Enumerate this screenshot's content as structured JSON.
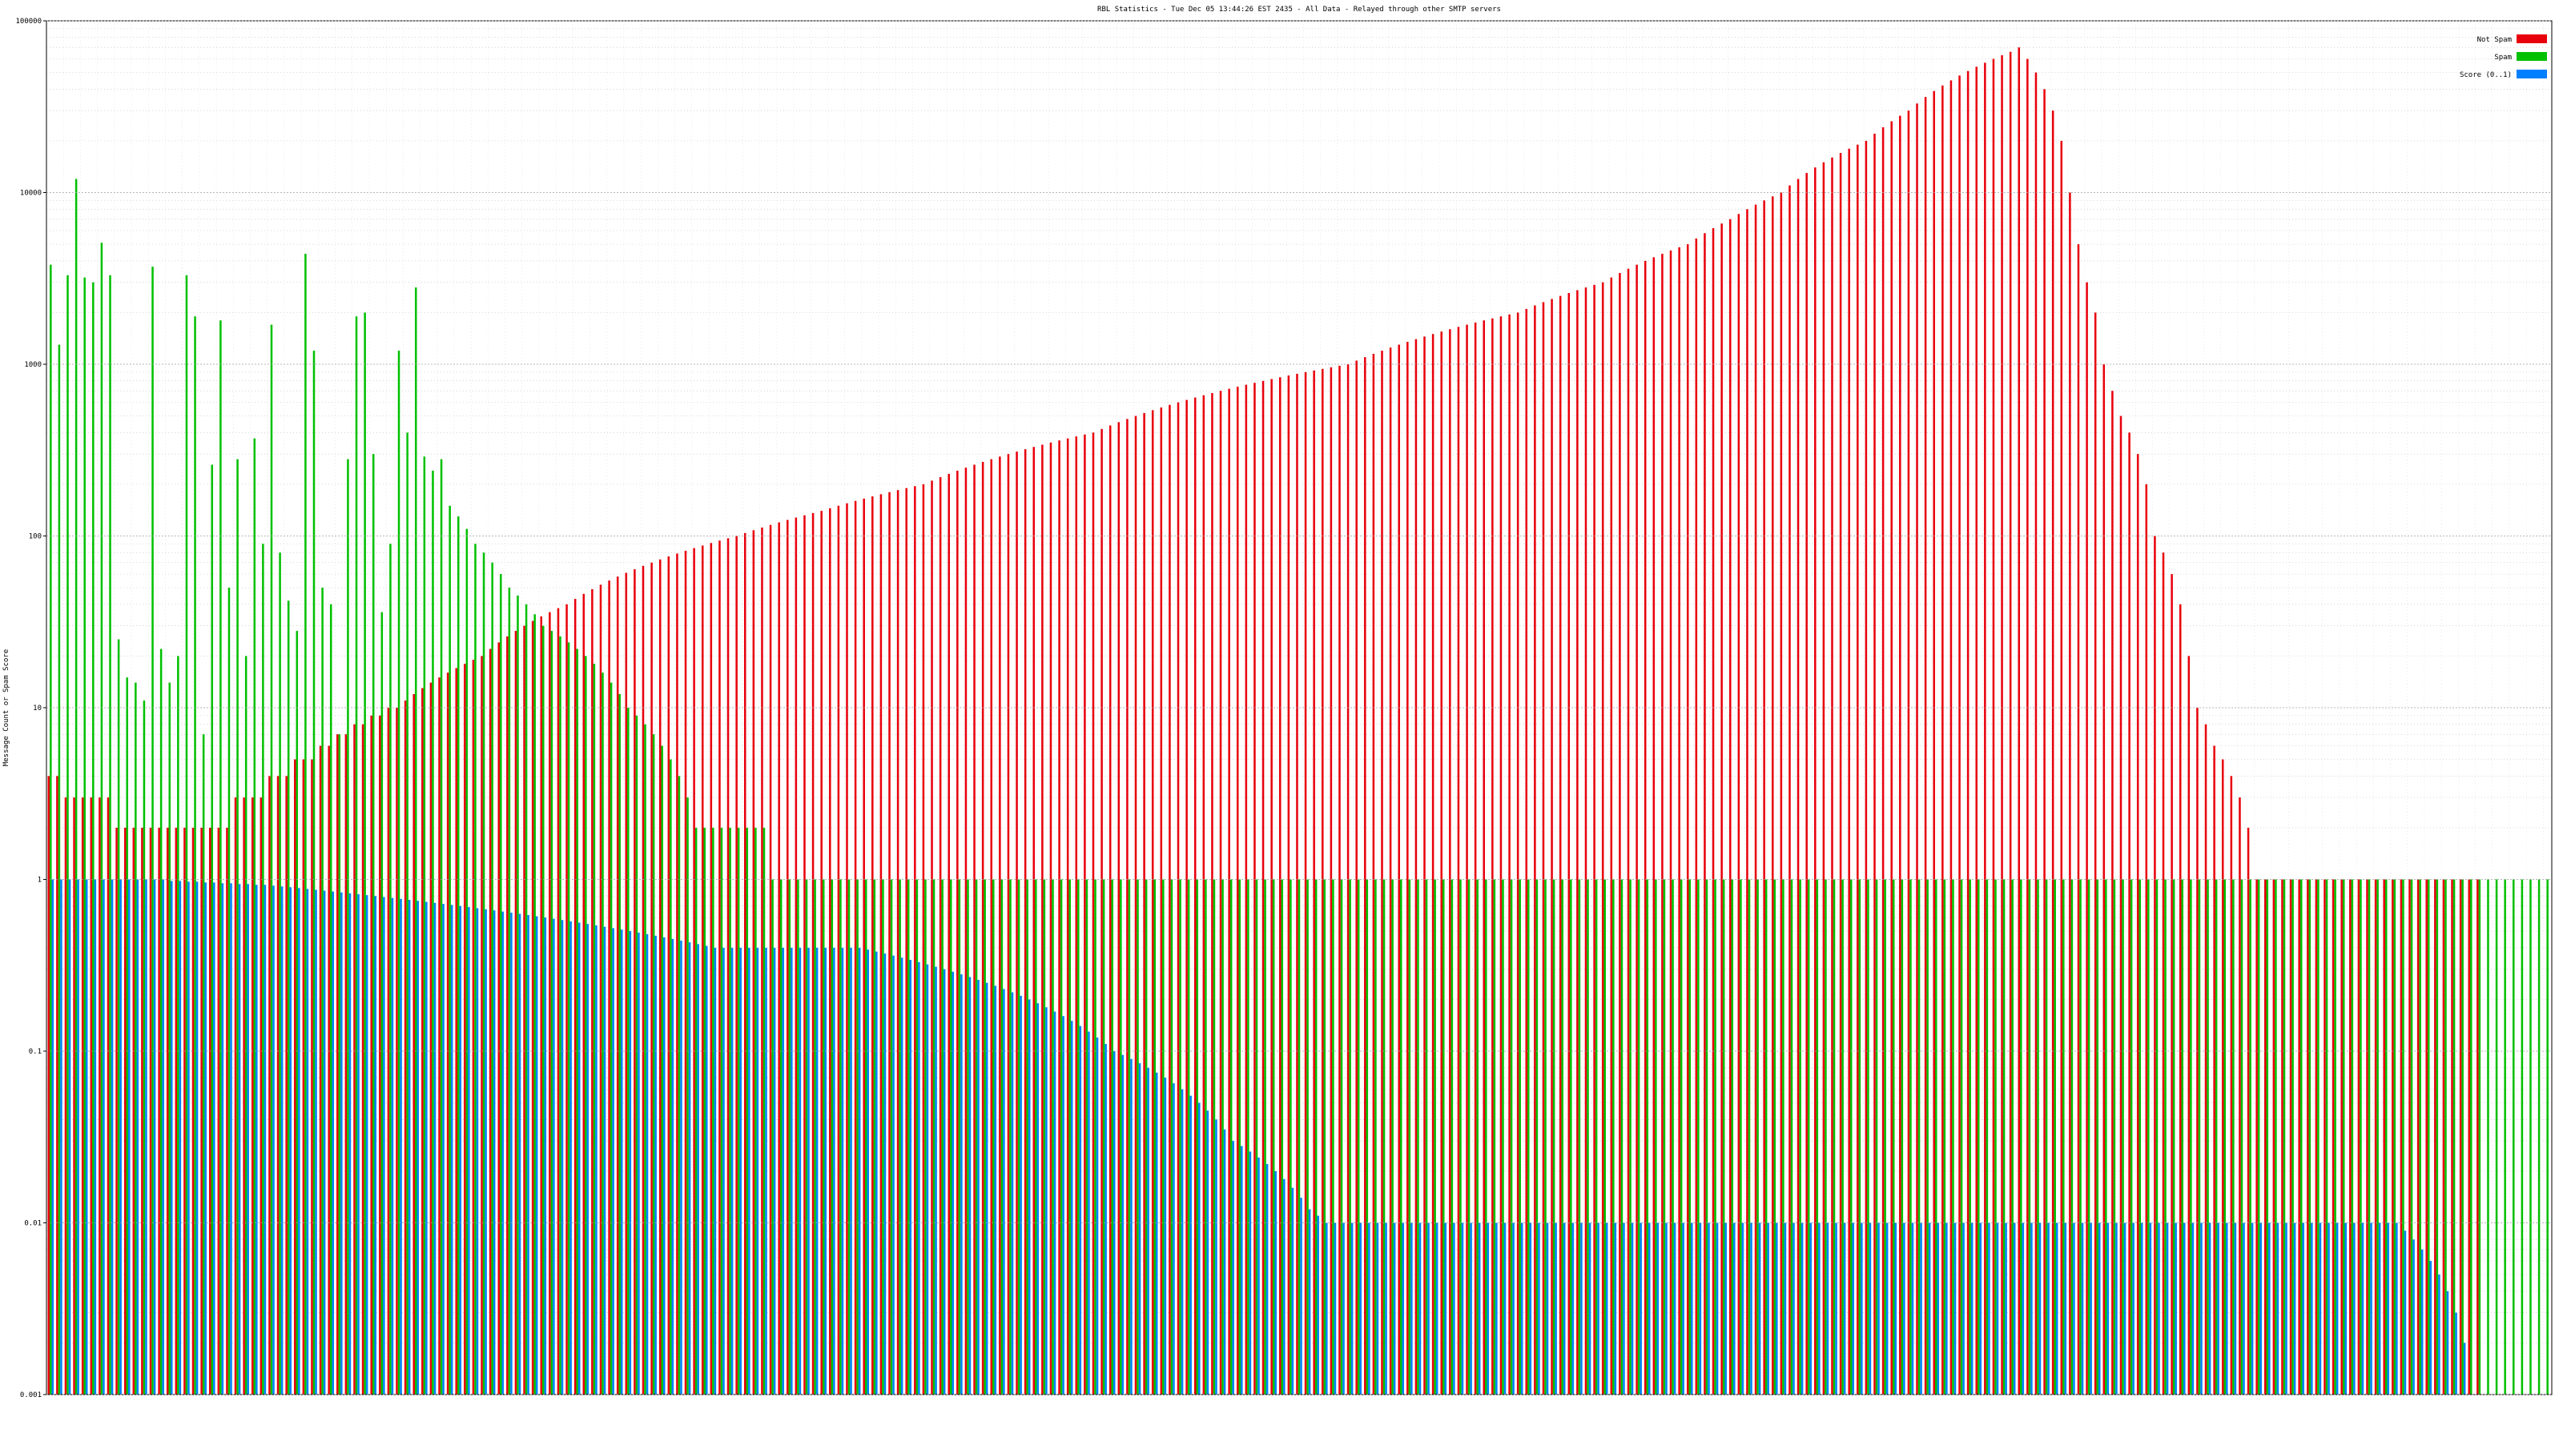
{
  "chart_data": {
    "type": "bar",
    "title": "RBL Statistics - Tue Dec 05 13:44:26 EST 2435 - All Data - Relayed through other SMTP servers",
    "xlabel": "",
    "ylabel": "Message Count or Spam Score",
    "log_scale": true,
    "ylim": [
      0.001,
      100000
    ],
    "y_ticks": [
      0.001,
      0.01,
      0.1,
      1,
      10,
      100,
      1000,
      10000,
      100000
    ],
    "y_tick_labels": [
      "0.001",
      "0.01",
      "0.1",
      "1",
      "10",
      "100",
      "1000",
      "10000",
      "100000"
    ],
    "grid": true,
    "legend_position": "top-right",
    "categories_note": "x-axis category labels are present but illegible at this resolution",
    "series": [
      {
        "name": "Not Spam",
        "color": "#e8000b",
        "values": [
          4,
          4,
          3,
          3,
          3,
          3,
          3,
          3,
          2,
          2,
          2,
          2,
          2,
          2,
          2,
          2,
          2,
          2,
          2,
          2,
          2,
          2,
          3,
          3,
          3,
          3,
          4,
          4,
          4,
          5,
          5,
          5,
          6,
          6,
          7,
          7,
          8,
          8,
          9,
          9,
          10,
          10,
          11,
          12,
          13,
          14,
          15,
          16,
          17,
          18,
          19,
          20,
          22,
          24,
          26,
          28,
          30,
          32,
          34,
          36,
          38,
          40,
          43,
          46,
          49,
          52,
          55,
          58,
          61,
          64,
          67,
          70,
          73,
          76,
          79,
          82,
          85,
          88,
          91,
          94,
          97,
          100,
          104,
          108,
          112,
          116,
          120,
          124,
          128,
          132,
          136,
          140,
          145,
          150,
          155,
          160,
          165,
          170,
          175,
          180,
          185,
          190,
          195,
          200,
          210,
          220,
          230,
          240,
          250,
          260,
          270,
          280,
          290,
          300,
          310,
          320,
          330,
          340,
          350,
          360,
          370,
          380,
          390,
          400,
          420,
          440,
          460,
          480,
          500,
          520,
          540,
          560,
          580,
          600,
          620,
          640,
          660,
          680,
          700,
          720,
          740,
          760,
          780,
          800,
          820,
          840,
          860,
          880,
          900,
          920,
          940,
          960,
          980,
          1000,
          1050,
          1100,
          1150,
          1200,
          1250,
          1300,
          1350,
          1400,
          1450,
          1500,
          1550,
          1600,
          1650,
          1700,
          1750,
          1800,
          1850,
          1900,
          1950,
          2000,
          2100,
          2200,
          2300,
          2400,
          2500,
          2600,
          2700,
          2800,
          2900,
          3000,
          3200,
          3400,
          3600,
          3800,
          4000,
          4200,
          4400,
          4600,
          4800,
          5000,
          5400,
          5800,
          6200,
          6600,
          7000,
          7500,
          8000,
          8500,
          9000,
          9500,
          10000,
          11000,
          12000,
          13000,
          14000,
          15000,
          16000,
          17000,
          18000,
          19000,
          20000,
          22000,
          24000,
          26000,
          28000,
          30000,
          33000,
          36000,
          39000,
          42000,
          45000,
          48000,
          51000,
          54000,
          57000,
          60000,
          63000,
          66000,
          70000,
          60000,
          50000,
          40000,
          30000,
          20000,
          10000,
          5000,
          3000,
          2000,
          1000,
          700,
          500,
          400,
          300,
          200,
          100,
          80,
          60,
          40,
          20,
          10,
          8,
          6,
          5,
          4,
          3,
          2,
          1,
          1,
          1,
          1,
          1,
          1,
          1,
          1,
          1,
          1,
          1,
          1,
          1,
          1,
          1,
          1,
          1,
          1,
          1,
          1,
          1,
          1,
          1,
          1,
          1,
          1,
          1
        ]
      },
      {
        "name": "Spam",
        "color": "#00c000",
        "values": [
          3800,
          1300,
          3300,
          12000,
          3200,
          3000,
          5100,
          3300,
          25,
          15,
          14,
          11,
          3700,
          22,
          14,
          20,
          3300,
          1900,
          7,
          260,
          1800,
          50,
          280,
          20,
          370,
          90,
          1700,
          80,
          42,
          28,
          4400,
          1200,
          50,
          40,
          7,
          280,
          1900,
          2000,
          300,
          36,
          90,
          1200,
          400,
          2800,
          290,
          240,
          280,
          150,
          130,
          110,
          90,
          80,
          70,
          60,
          50,
          45,
          40,
          35,
          30,
          28,
          26,
          24,
          22,
          20,
          18,
          16,
          14,
          12,
          10,
          9,
          8,
          7,
          6,
          5,
          4,
          3,
          2,
          2,
          2,
          2,
          2,
          2,
          2,
          2,
          2,
          1,
          1,
          1,
          1,
          1,
          1,
          1,
          1,
          1,
          1,
          1,
          1,
          1,
          1,
          1,
          1,
          1,
          1,
          1,
          1,
          1,
          1,
          1,
          1,
          1,
          1,
          1,
          1,
          1,
          1,
          1,
          1,
          1,
          1,
          1,
          1,
          1,
          1,
          1,
          1,
          1,
          1,
          1,
          1,
          1,
          1,
          1,
          1,
          1,
          1,
          1,
          1,
          1,
          1,
          1,
          1,
          1,
          1,
          1,
          1,
          1,
          1,
          1,
          1,
          1,
          1,
          1,
          1,
          1,
          1,
          1,
          1,
          1,
          1,
          1,
          1,
          1,
          1,
          1,
          1,
          1,
          1,
          1,
          1,
          1,
          1,
          1,
          1,
          1,
          1,
          1,
          1,
          1,
          1,
          1,
          1,
          1,
          1,
          1,
          1,
          1,
          1,
          1,
          1,
          1,
          1,
          1,
          1,
          1,
          1,
          1,
          1,
          1,
          1,
          1,
          1,
          1,
          1,
          1,
          1,
          1,
          1,
          1,
          1,
          1,
          1,
          1,
          1,
          1,
          1,
          1,
          1,
          1,
          1,
          1,
          1,
          1,
          1,
          1,
          1,
          1,
          1,
          1,
          1,
          1,
          1,
          1,
          1,
          1,
          1,
          1,
          1,
          1,
          1,
          1,
          1,
          1,
          1,
          1,
          1,
          1,
          1,
          1,
          1,
          1,
          1,
          1,
          1,
          1,
          1,
          1,
          1,
          1,
          1,
          1,
          1,
          1,
          1,
          1,
          1,
          1,
          1,
          1,
          1,
          1,
          1,
          1,
          1,
          1,
          1,
          1,
          1,
          1,
          1,
          1,
          1,
          1,
          1,
          1,
          1,
          1,
          1,
          1,
          1,
          1,
          1,
          1,
          1,
          1,
          1
        ]
      },
      {
        "name": "Score (0..1)",
        "color": "#0080ff",
        "values": [
          1,
          1,
          1,
          1,
          1,
          1,
          1,
          1,
          1,
          1,
          1,
          1,
          1,
          1,
          0.98,
          0.98,
          0.97,
          0.97,
          0.96,
          0.96,
          0.95,
          0.95,
          0.94,
          0.94,
          0.93,
          0.93,
          0.92,
          0.91,
          0.9,
          0.89,
          0.88,
          0.87,
          0.86,
          0.85,
          0.84,
          0.83,
          0.82,
          0.81,
          0.8,
          0.79,
          0.78,
          0.77,
          0.76,
          0.75,
          0.74,
          0.73,
          0.72,
          0.71,
          0.7,
          0.69,
          0.68,
          0.67,
          0.66,
          0.65,
          0.64,
          0.63,
          0.62,
          0.61,
          0.6,
          0.59,
          0.58,
          0.57,
          0.56,
          0.55,
          0.54,
          0.53,
          0.52,
          0.51,
          0.5,
          0.49,
          0.48,
          0.47,
          0.46,
          0.45,
          0.44,
          0.43,
          0.42,
          0.41,
          0.4,
          0.4,
          0.4,
          0.4,
          0.4,
          0.4,
          0.4,
          0.4,
          0.4,
          0.4,
          0.4,
          0.4,
          0.4,
          0.4,
          0.4,
          0.4,
          0.4,
          0.4,
          0.39,
          0.38,
          0.37,
          0.36,
          0.35,
          0.34,
          0.33,
          0.32,
          0.31,
          0.3,
          0.29,
          0.28,
          0.27,
          0.26,
          0.25,
          0.24,
          0.23,
          0.22,
          0.21,
          0.2,
          0.19,
          0.18,
          0.17,
          0.16,
          0.15,
          0.14,
          0.13,
          0.12,
          0.11,
          0.1,
          0.095,
          0.09,
          0.085,
          0.08,
          0.075,
          0.07,
          0.065,
          0.06,
          0.055,
          0.05,
          0.045,
          0.04,
          0.035,
          0.03,
          0.028,
          0.026,
          0.024,
          0.022,
          0.02,
          0.018,
          0.016,
          0.014,
          0.012,
          0.011,
          0.01,
          0.01,
          0.01,
          0.01,
          0.01,
          0.01,
          0.01,
          0.01,
          0.01,
          0.01,
          0.01,
          0.01,
          0.01,
          0.01,
          0.01,
          0.01,
          0.01,
          0.01,
          0.01,
          0.01,
          0.01,
          0.01,
          0.01,
          0.01,
          0.01,
          0.01,
          0.01,
          0.01,
          0.01,
          0.01,
          0.01,
          0.01,
          0.01,
          0.01,
          0.01,
          0.01,
          0.01,
          0.01,
          0.01,
          0.01,
          0.01,
          0.01,
          0.01,
          0.01,
          0.01,
          0.01,
          0.01,
          0.01,
          0.01,
          0.01,
          0.01,
          0.01,
          0.01,
          0.01,
          0.01,
          0.01,
          0.01,
          0.01,
          0.01,
          0.01,
          0.01,
          0.01,
          0.01,
          0.01,
          0.01,
          0.01,
          0.01,
          0.01,
          0.01,
          0.01,
          0.01,
          0.01,
          0.01,
          0.01,
          0.01,
          0.01,
          0.01,
          0.01,
          0.01,
          0.01,
          0.01,
          0.01,
          0.01,
          0.01,
          0.01,
          0.01,
          0.01,
          0.01,
          0.01,
          0.01,
          0.01,
          0.01,
          0.01,
          0.01,
          0.01,
          0.01,
          0.01,
          0.01,
          0.01,
          0.01,
          0.01,
          0.01,
          0.01,
          0.01,
          0.01,
          0.01,
          0.01,
          0.01,
          0.01,
          0.01,
          0.01,
          0.01,
          0.01,
          0.01,
          0.01,
          0.01,
          0.01,
          0.01,
          0.01,
          0.01,
          0.01,
          0.01,
          0.01,
          0.01,
          0.01,
          0.01,
          0.01,
          0.009,
          0.008,
          0.007,
          0.006,
          0.005,
          0.004,
          0.003,
          0.002
        ]
      }
    ]
  }
}
